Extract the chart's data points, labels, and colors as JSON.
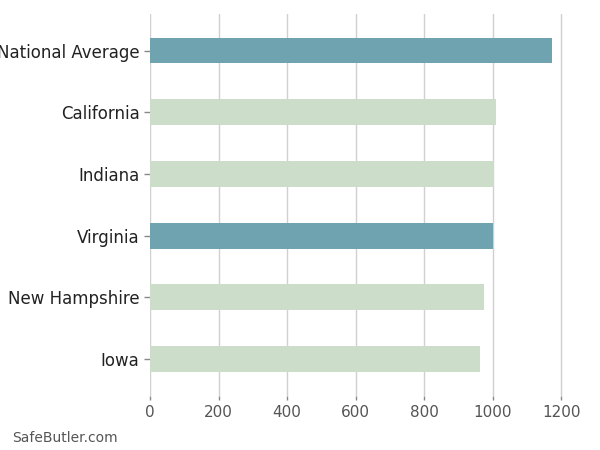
{
  "categories": [
    "Iowa",
    "New Hampshire",
    "Virginia",
    "Indiana",
    "California",
    "National Average"
  ],
  "values": [
    963,
    975,
    1000,
    1003,
    1008,
    1173
  ],
  "bar_colors": [
    "#ccdeca",
    "#ccdeca",
    "#6fa3b0",
    "#ccdeca",
    "#ccdeca",
    "#6fa3b0"
  ],
  "xlim": [
    0,
    1260
  ],
  "xticks": [
    0,
    200,
    400,
    600,
    800,
    1000,
    1200
  ],
  "background_color": "#ffffff",
  "axes_facecolor": "#ffffff",
  "bar_height": 0.42,
  "label_fontsize": 12,
  "tick_fontsize": 11,
  "footer_text": "SafeButler.com",
  "footer_fontsize": 10,
  "grid_color": "#d0d0d0",
  "grid_linewidth": 1.0
}
